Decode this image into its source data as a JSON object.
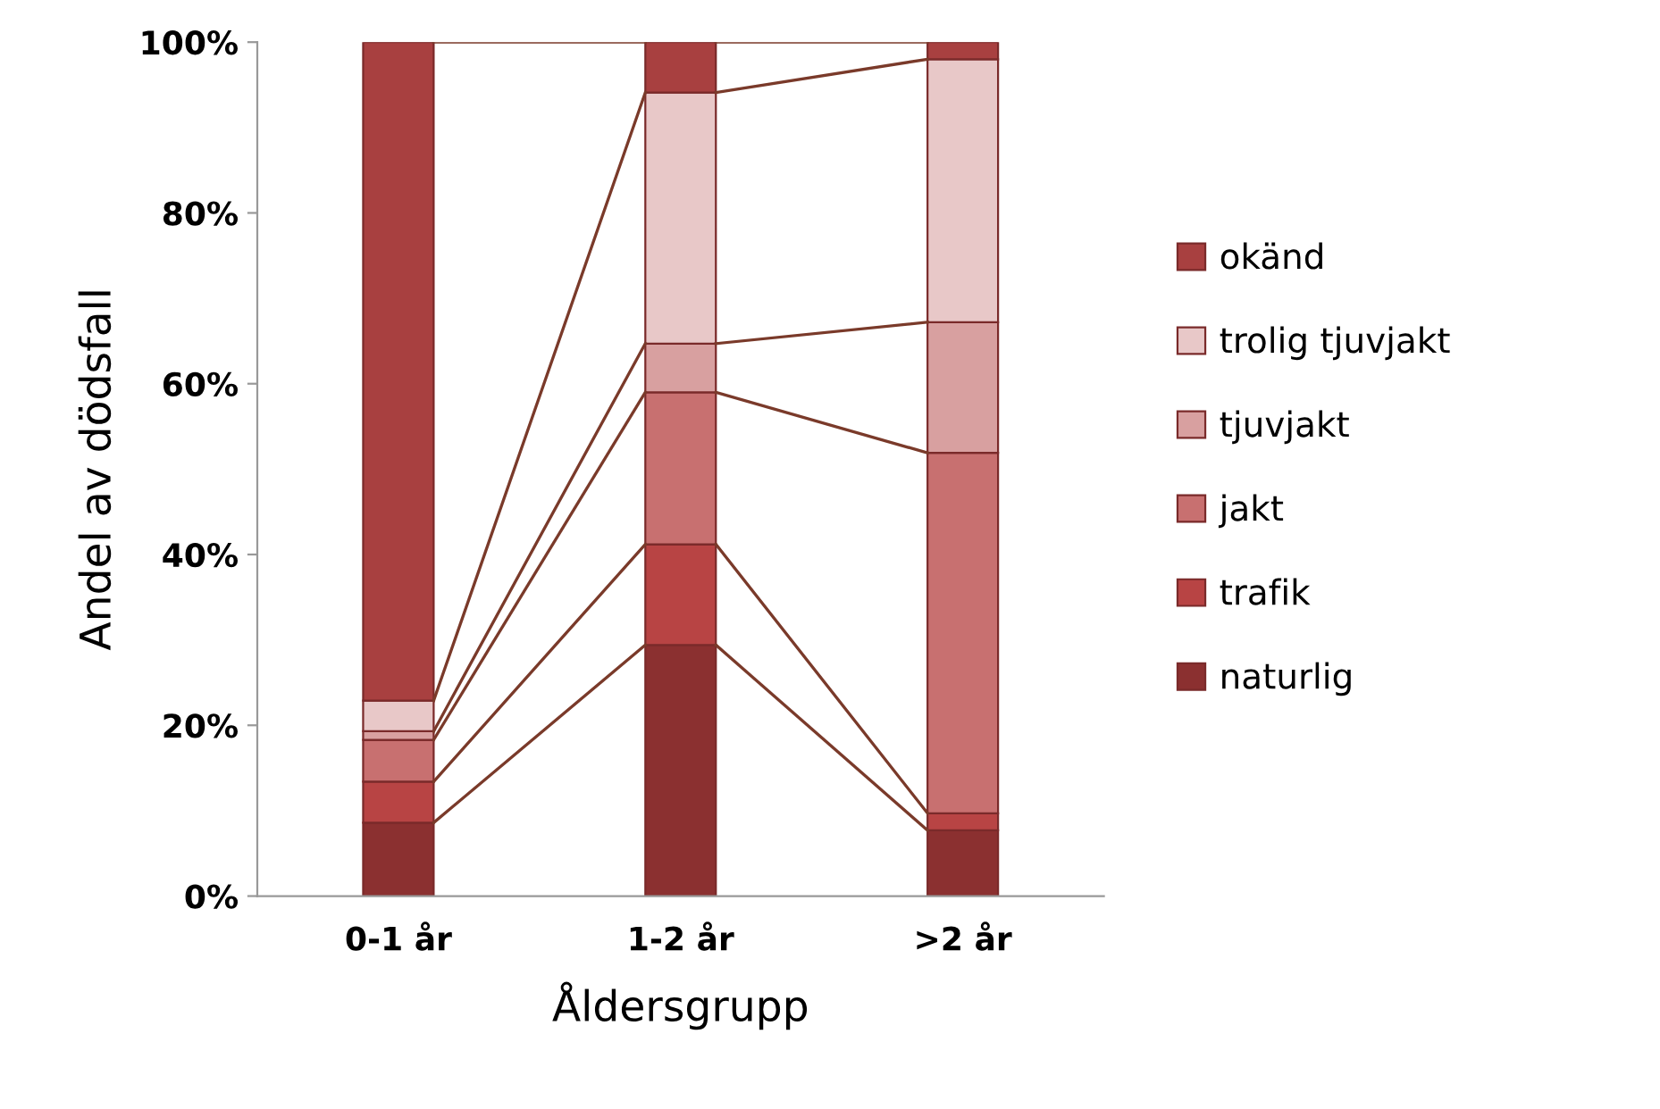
{
  "chart_data": {
    "type": "bar",
    "stacked": true,
    "xlabel": "Åldersgrupp",
    "ylabel": "Andel av dödsfall",
    "categories": [
      "0-1 år",
      "1-2 år",
      ">2 år"
    ],
    "series": [
      {
        "name": "naturlig",
        "color": "#8b3030",
        "values": [
          8.6,
          29.4,
          7.7
        ]
      },
      {
        "name": "trafik",
        "color": "#b84444",
        "values": [
          4.8,
          11.8,
          2.0
        ]
      },
      {
        "name": "jakt",
        "color": "#c87070",
        "values": [
          4.9,
          17.8,
          42.2
        ]
      },
      {
        "name": "tjuvjakt",
        "color": "#d8a0a0",
        "values": [
          1.0,
          5.7,
          15.3
        ]
      },
      {
        "name": "trolig tjuvjakt",
        "color": "#e8c8c8",
        "values": [
          3.6,
          29.4,
          30.8
        ]
      },
      {
        "name": "okänd",
        "color": "#a84040",
        "values": [
          77.1,
          5.9,
          2.0
        ]
      }
    ],
    "ylim": [
      0,
      100
    ],
    "yticks": [
      {
        "value": 0,
        "label": "0%"
      },
      {
        "value": 20,
        "label": "20%"
      },
      {
        "value": 40,
        "label": "40%"
      },
      {
        "value": 60,
        "label": "60%"
      },
      {
        "value": 80,
        "label": "80%"
      },
      {
        "value": 100,
        "label": "100%"
      }
    ],
    "grid": false,
    "legend": "right"
  }
}
